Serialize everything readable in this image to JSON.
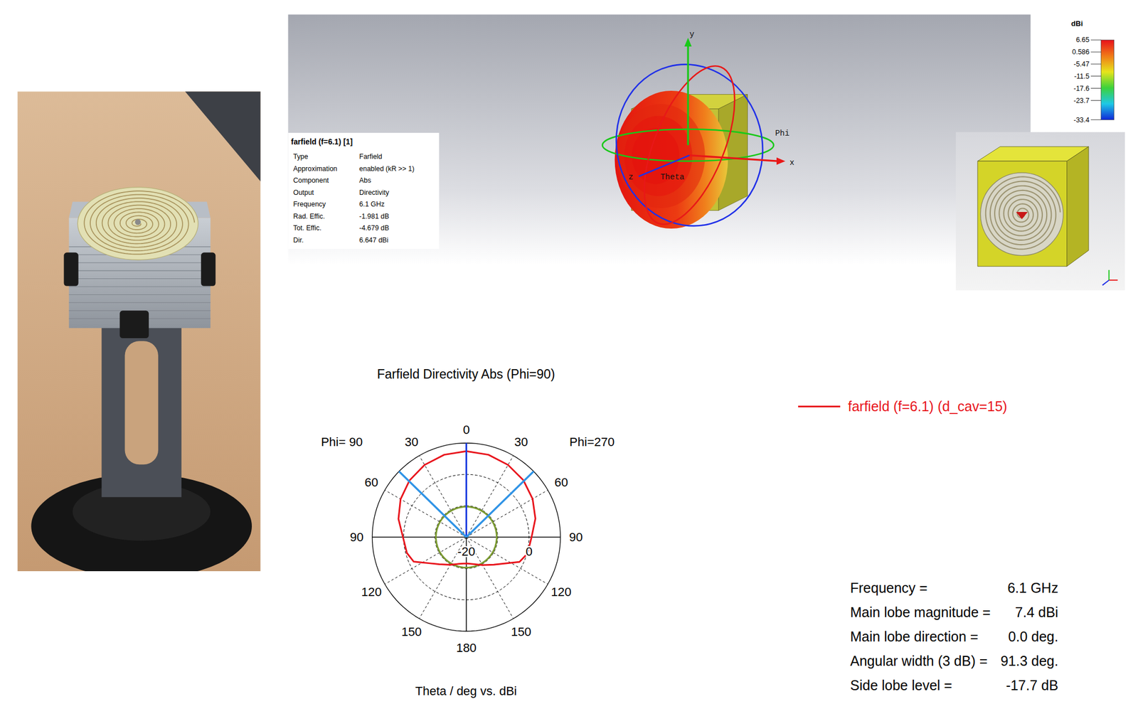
{
  "farfield_3d": {
    "axis_labels": {
      "x": "x",
      "y": "y",
      "z": "z"
    },
    "angle_labels": {
      "phi": "Phi",
      "theta": "Theta"
    },
    "info": {
      "title": "farfield (f=6.1) [1]",
      "rows": [
        [
          "Type",
          "Farfield"
        ],
        [
          "Approximation",
          "enabled (kR >> 1)"
        ],
        [
          "Component",
          "Abs"
        ],
        [
          "Output",
          "Directivity"
        ],
        [
          "Frequency",
          "6.1 GHz"
        ],
        [
          "Rad. Effic.",
          "-1.981 dB"
        ],
        [
          "Tot. Effic.",
          "-4.679 dB"
        ],
        [
          "Dir.",
          "6.647 dBi"
        ]
      ]
    },
    "colorbar": {
      "unit": "dBi",
      "range": [
        -33.4,
        6.65
      ],
      "ticks": [
        6.65,
        0.586,
        -5.47,
        -11.5,
        -17.6,
        -23.7,
        -33.4
      ]
    }
  },
  "chart_data": {
    "type": "polar",
    "title": "Farfield Directivity Abs (Phi=90)",
    "x_label": "Theta / deg vs. dBi",
    "side_labels": {
      "left": "Phi= 90",
      "right": "Phi=270"
    },
    "theta": [
      0,
      15,
      30,
      45,
      60,
      75,
      90,
      105,
      115,
      125,
      135,
      150,
      165,
      180
    ],
    "series": [
      {
        "name": "farfield (f=6.1) (d_cav=15)",
        "color": "#e8141c",
        "phi_90": [
          7.4,
          7.2,
          6.6,
          5.6,
          4.2,
          2.4,
          0.2,
          -0.4,
          -1.5,
          -5.5,
          -7.8,
          -9.8,
          -11.2,
          -11.6
        ],
        "phi_270": [
          7.4,
          7.2,
          6.6,
          5.7,
          4.4,
          2.8,
          0.8,
          0.2,
          -1.3,
          -5.3,
          -7.6,
          -9.7,
          -11.1,
          -11.6
        ]
      }
    ],
    "theta_ticks": [
      0,
      30,
      60,
      90,
      120,
      150,
      180
    ],
    "rlim": [
      -20,
      10
    ],
    "rticks": [
      -20,
      -10,
      0,
      10
    ],
    "rtick_labels": [
      -20,
      0
    ],
    "legend": "right",
    "results": [
      {
        "label": "Frequency =",
        "value": 6.1,
        "unit": "GHz"
      },
      {
        "label": "Main lobe magnitude =",
        "value": 7.4,
        "unit": "dBi"
      },
      {
        "label": "Main lobe direction =",
        "value": 0,
        "value_label": "0.0",
        "unit": "deg."
      },
      {
        "label": "Angular width (3 dB) =",
        "value": 91.3,
        "unit": "deg."
      },
      {
        "label": "Side lobe level =",
        "value": -17.7,
        "unit": "dB"
      }
    ]
  }
}
